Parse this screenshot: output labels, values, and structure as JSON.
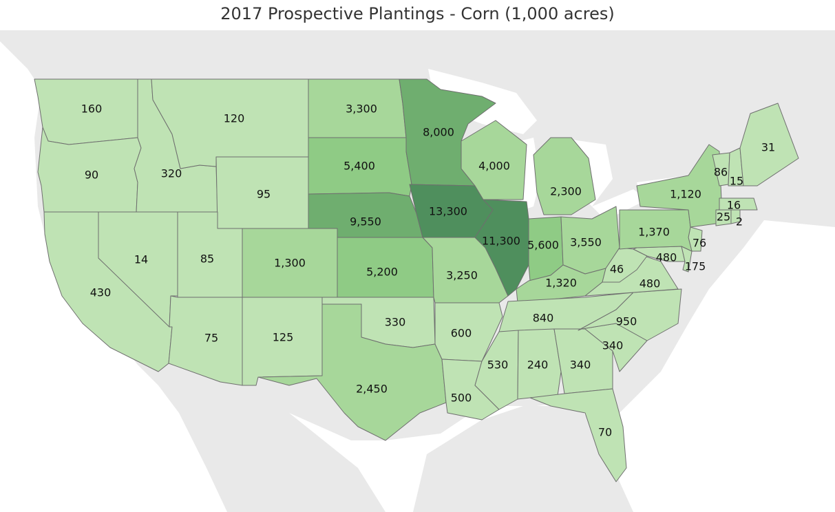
{
  "title": "2017 Prospective Plantings - Corn (1,000 acres)",
  "colors": {
    "background_land": "#e9e9e9",
    "water": "#ffffff",
    "border": "#6e6e6e",
    "scale": [
      "#bfe3b4",
      "#a7d79a",
      "#8fcb85",
      "#6fae6f",
      "#4f8f5d"
    ]
  },
  "states": [
    {
      "id": "WA",
      "value": "160"
    },
    {
      "id": "OR",
      "value": "90"
    },
    {
      "id": "CA",
      "value": "430"
    },
    {
      "id": "NV",
      "value": "14"
    },
    {
      "id": "ID",
      "value": "320"
    },
    {
      "id": "MT",
      "value": "120"
    },
    {
      "id": "WY",
      "value": "95"
    },
    {
      "id": "UT",
      "value": "85"
    },
    {
      "id": "CO",
      "value": "1,300"
    },
    {
      "id": "AZ",
      "value": "75"
    },
    {
      "id": "NM",
      "value": "125"
    },
    {
      "id": "ND",
      "value": "3,300"
    },
    {
      "id": "SD",
      "value": "5,400"
    },
    {
      "id": "NE",
      "value": "9,550"
    },
    {
      "id": "KS",
      "value": "5,200"
    },
    {
      "id": "OK",
      "value": "330"
    },
    {
      "id": "TX",
      "value": "2,450"
    },
    {
      "id": "MN",
      "value": "8,000"
    },
    {
      "id": "IA",
      "value": "13,300"
    },
    {
      "id": "MO",
      "value": "3,250"
    },
    {
      "id": "AR",
      "value": "600"
    },
    {
      "id": "LA",
      "value": "500"
    },
    {
      "id": "WI",
      "value": "4,000"
    },
    {
      "id": "IL",
      "value": "11,300"
    },
    {
      "id": "MI",
      "value": "2,300"
    },
    {
      "id": "IN",
      "value": "5,600"
    },
    {
      "id": "OH",
      "value": "3,550"
    },
    {
      "id": "KY",
      "value": "1,320"
    },
    {
      "id": "TN",
      "value": "840"
    },
    {
      "id": "MS",
      "value": "530"
    },
    {
      "id": "AL",
      "value": "240"
    },
    {
      "id": "GA",
      "value": "340"
    },
    {
      "id": "FL",
      "value": "70"
    },
    {
      "id": "SC",
      "value": "340"
    },
    {
      "id": "NC",
      "value": "950"
    },
    {
      "id": "VA",
      "value": "480"
    },
    {
      "id": "WV",
      "value": "46"
    },
    {
      "id": "MD",
      "value": "480"
    },
    {
      "id": "DE",
      "value": "175"
    },
    {
      "id": "NJ",
      "value": "76"
    },
    {
      "id": "PA",
      "value": "1,370"
    },
    {
      "id": "NY",
      "value": "1,120"
    },
    {
      "id": "VT",
      "value": "86"
    },
    {
      "id": "NH",
      "value": "15"
    },
    {
      "id": "ME",
      "value": "31"
    },
    {
      "id": "MA",
      "value": "16"
    },
    {
      "id": "CT",
      "value": "25"
    },
    {
      "id": "RI",
      "value": "2"
    }
  ]
}
